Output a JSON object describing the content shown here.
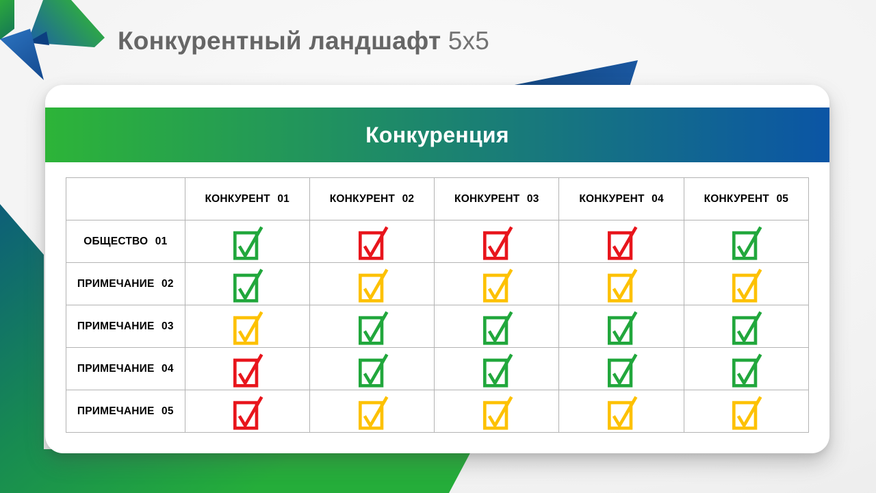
{
  "slide": {
    "title": "Конкурентный ландшафт",
    "title_suffix": "5x5"
  },
  "panel": {
    "header": "Конкуренция"
  },
  "table": {
    "corner": "",
    "columns": [
      "КОНКУРЕНТ 01",
      "КОНКУРЕНТ 02",
      "КОНКУРЕНТ 03",
      "КОНКУРЕНТ 04",
      "КОНКУРЕНТ 05"
    ],
    "rows": [
      {
        "label": "ОБЩЕСТВО 01",
        "checks": [
          "green",
          "red",
          "red",
          "red",
          "green"
        ]
      },
      {
        "label": "ПРИМЕЧАНИЕ 02",
        "checks": [
          "green",
          "yellow",
          "yellow",
          "yellow",
          "yellow"
        ]
      },
      {
        "label": "ПРИМЕЧАНИЕ 03",
        "checks": [
          "yellow",
          "green",
          "green",
          "green",
          "green"
        ]
      },
      {
        "label": "ПРИМЕЧАНИЕ 04",
        "checks": [
          "red",
          "green",
          "green",
          "green",
          "green"
        ]
      },
      {
        "label": "ПРИМЕЧАНИЕ 05",
        "checks": [
          "red",
          "yellow",
          "yellow",
          "yellow",
          "yellow"
        ]
      }
    ]
  },
  "colors": {
    "check_green": "#21a73c",
    "check_red": "#e8151c",
    "check_yellow": "#fdc101",
    "header_gradient_start": "#2db438",
    "header_gradient_end": "#0b55a5"
  },
  "icons": {
    "check": "checked-checkbox-icon",
    "logo": "brand-logo-icon"
  }
}
